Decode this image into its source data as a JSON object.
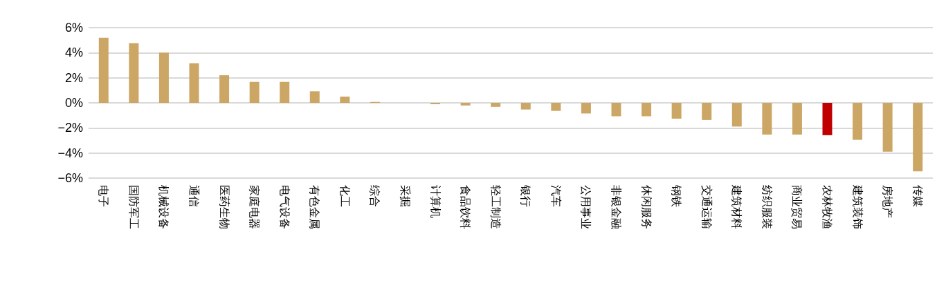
{
  "chart_data": {
    "type": "bar",
    "categories": [
      "电子",
      "国防军工",
      "机械设备",
      "通信",
      "医药生物",
      "家庭电器",
      "电气设备",
      "有色金属",
      "化工",
      "综合",
      "采掘",
      "计算机",
      "食品饮料",
      "轻工制造",
      "银行",
      "汽车",
      "公用事业",
      "非银金融",
      "休闲服务",
      "钢铁",
      "交通运输",
      "建筑材料",
      "纺织服装",
      "商业贸易",
      "农林牧渔",
      "建筑装饰",
      "房地产",
      "传媒"
    ],
    "values": [
      5.19,
      4.76,
      4.01,
      3.16,
      2.2,
      1.67,
      1.67,
      0.92,
      0.5,
      0.07,
      0,
      -0.11,
      -0.21,
      -0.32,
      -0.53,
      -0.64,
      -0.85,
      -1.07,
      -1.07,
      -1.26,
      -1.37,
      -1.89,
      -2.53,
      -2.53,
      -2.58,
      -2.95,
      -3.89,
      -5.47
    ],
    "colors": [
      "#cca664",
      "#cca664",
      "#cca664",
      "#cca664",
      "#cca664",
      "#cca664",
      "#cca664",
      "#cca664",
      "#cca664",
      "#cca664",
      "#cca664",
      "#cca664",
      "#cca664",
      "#cca664",
      "#cca664",
      "#cca664",
      "#cca664",
      "#cca664",
      "#cca664",
      "#cca664",
      "#cca664",
      "#cca664",
      "#cca664",
      "#cca664",
      "#c00000",
      "#cca664",
      "#cca664",
      "#cca664"
    ],
    "ylim": [
      -6,
      6
    ],
    "yticks": [
      {
        "value": -6,
        "label": "−6%"
      },
      {
        "value": -4,
        "label": "−4%"
      },
      {
        "value": -2,
        "label": "−2%"
      },
      {
        "value": 0,
        "label": "0%"
      },
      {
        "value": 2,
        "label": "2%"
      },
      {
        "value": 4,
        "label": "4%"
      },
      {
        "value": 6,
        "label": "6%"
      }
    ],
    "grid": "y"
  }
}
